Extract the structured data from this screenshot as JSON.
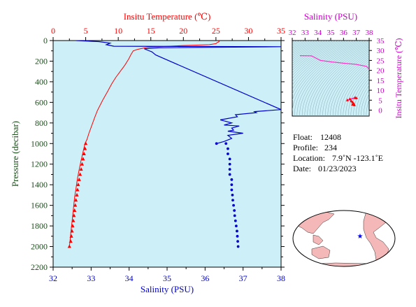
{
  "chart_data": [
    {
      "type": "line",
      "name": "profile-plot",
      "y_axis": {
        "label": "Pressure (decibar)",
        "range": [
          0,
          2200
        ],
        "inverted": true,
        "ticks": [
          "0",
          "200",
          "400",
          "600",
          "800",
          "1000",
          "1200",
          "1400",
          "1600",
          "1800",
          "2000",
          "2200"
        ]
      },
      "x_bottom": {
        "label": "Salinity (PSU)",
        "range": [
          32,
          38
        ],
        "ticks": [
          "32",
          "33",
          "34",
          "35",
          "36",
          "37",
          "38"
        ]
      },
      "x_top": {
        "label": "Insitu Temperature (℃)",
        "range": [
          0,
          35
        ],
        "ticks": [
          "0",
          "5",
          "10",
          "15",
          "20",
          "25",
          "30",
          "35"
        ]
      },
      "grid": false,
      "series": [
        {
          "quantity": "temperature",
          "axis": "top",
          "color": "#ff0000",
          "marker": "triangle",
          "line": [
            [
              25.4,
              0
            ],
            [
              25.5,
              10
            ],
            [
              25.2,
              20
            ],
            [
              25.0,
              30
            ],
            [
              24.0,
              40
            ],
            [
              20.0,
              48
            ],
            [
              14.5,
              65
            ],
            [
              13.0,
              85
            ],
            [
              12.3,
              100
            ],
            [
              12.0,
              130
            ],
            [
              11.6,
              180
            ],
            [
              11.0,
              240
            ],
            [
              10.3,
              300
            ],
            [
              9.6,
              360
            ],
            [
              9.0,
              420
            ],
            [
              8.4,
              490
            ],
            [
              7.6,
              580
            ],
            [
              6.8,
              680
            ],
            [
              6.3,
              760
            ],
            [
              5.9,
              830
            ],
            [
              5.5,
              900
            ],
            [
              5.2,
              960
            ],
            [
              4.9,
              1000
            ],
            [
              4.6,
              1080
            ],
            [
              4.3,
              1160
            ],
            [
              4.0,
              1250
            ],
            [
              3.7,
              1350
            ],
            [
              3.5,
              1440
            ],
            [
              3.3,
              1520
            ],
            [
              3.1,
              1640
            ],
            [
              2.9,
              1760
            ],
            [
              2.7,
              1880
            ],
            [
              2.5,
              2000
            ]
          ],
          "markers": [
            [
              5.0,
              1000
            ],
            [
              4.9,
              1050
            ],
            [
              4.75,
              1100
            ],
            [
              4.6,
              1150
            ],
            [
              4.45,
              1200
            ],
            [
              4.3,
              1250
            ],
            [
              4.15,
              1300
            ],
            [
              4.0,
              1350
            ],
            [
              3.85,
              1400
            ],
            [
              3.75,
              1450
            ],
            [
              3.65,
              1500
            ],
            [
              3.5,
              1550
            ],
            [
              3.4,
              1600
            ],
            [
              3.3,
              1650
            ],
            [
              3.2,
              1700
            ],
            [
              3.1,
              1750
            ],
            [
              3.0,
              1800
            ],
            [
              2.9,
              1850
            ],
            [
              2.8,
              1900
            ],
            [
              2.7,
              1950
            ],
            [
              2.5,
              2000
            ]
          ]
        },
        {
          "quantity": "salinity",
          "axis": "bottom",
          "color": "#0000cc",
          "marker": "dot",
          "line": [
            [
              32.6,
              0
            ],
            [
              33.2,
              10
            ],
            [
              33.5,
              25
            ],
            [
              33.4,
              40
            ],
            [
              33.6,
              55
            ],
            [
              38.0,
              60
            ],
            [
              34.8,
              70
            ],
            [
              34.4,
              80
            ],
            [
              34.5,
              95
            ],
            [
              34.6,
              110
            ],
            [
              34.7,
              140
            ],
            [
              38.0,
              670
            ],
            [
              37.3,
              690
            ],
            [
              37.35,
              700
            ],
            [
              36.8,
              720
            ],
            [
              36.85,
              740
            ],
            [
              36.4,
              770
            ],
            [
              36.7,
              800
            ],
            [
              36.5,
              820
            ],
            [
              36.9,
              830
            ],
            [
              36.7,
              850
            ],
            [
              36.75,
              870
            ],
            [
              36.6,
              880
            ],
            [
              37.0,
              900
            ],
            [
              36.6,
              920
            ],
            [
              36.7,
              950
            ],
            [
              36.5,
              980
            ],
            [
              36.3,
              1000
            ]
          ],
          "markers": [
            [
              36.3,
              1000
            ],
            [
              36.55,
              1000
            ],
            [
              36.6,
              1050
            ],
            [
              36.6,
              1100
            ],
            [
              36.65,
              1150
            ],
            [
              36.65,
              1200
            ],
            [
              36.65,
              1250
            ],
            [
              36.65,
              1300
            ],
            [
              36.7,
              1350
            ],
            [
              36.7,
              1400
            ],
            [
              36.7,
              1450
            ],
            [
              36.72,
              1500
            ],
            [
              36.73,
              1550
            ],
            [
              36.75,
              1600
            ],
            [
              36.77,
              1650
            ],
            [
              36.78,
              1700
            ],
            [
              36.8,
              1750
            ],
            [
              36.82,
              1800
            ],
            [
              36.84,
              1850
            ],
            [
              36.85,
              1900
            ],
            [
              36.86,
              1950
            ],
            [
              36.87,
              2000
            ]
          ]
        }
      ]
    },
    {
      "type": "line",
      "name": "ts-diagram",
      "x_axis": {
        "label": "Salinity (PSU)",
        "range": [
          32,
          38
        ],
        "ticks": [
          "32",
          "33",
          "34",
          "35",
          "36",
          "37",
          "38"
        ]
      },
      "y_axis": {
        "label": "Insitu Temperature (℃)",
        "range": [
          -3,
          35
        ],
        "ticks": [
          "0",
          "5",
          "10",
          "15",
          "20",
          "25",
          "30",
          "35"
        ]
      },
      "series": [
        {
          "quantity": "T-S profile",
          "color": "#ff33cc",
          "points": [
            [
              32.6,
              27.4
            ],
            [
              33.5,
              27.3
            ],
            [
              34.2,
              25.0
            ],
            [
              35.0,
              24.3
            ],
            [
              36.0,
              23.6
            ],
            [
              37.0,
              23.0
            ],
            [
              37.8,
              22.0
            ],
            [
              38.0,
              20.5
            ]
          ],
          "cluster": [
            [
              36.3,
              5.0
            ],
            [
              36.9,
              6.3
            ],
            [
              37.0,
              6.0
            ],
            [
              36.5,
              5.5
            ],
            [
              36.6,
              4.5
            ],
            [
              36.7,
              4.0
            ],
            [
              36.8,
              3.2
            ],
            [
              36.7,
              2.8
            ],
            [
              36.85,
              2.5
            ]
          ]
        }
      ]
    }
  ],
  "colors": {
    "plot_bg": "#cdeff7",
    "temperature": "#ff0000",
    "salinity": "#0000cc",
    "pressure_axis": "#1a4d1a",
    "ts_axis": "#cc00cc",
    "map_land": "#f4b8b8",
    "map_ocean": "#ffffff"
  },
  "info": {
    "float_label": "Float:",
    "float_value": "12408",
    "profile_label": "Profile:",
    "profile_value": "234",
    "location_label": "Location:",
    "location_value": "7.9˚N  -123.1˚E",
    "date_label": "Date:",
    "date_value": "01/23/2023"
  },
  "map": {
    "marker": "star",
    "marker_color": "#0000ff",
    "lat": 7.9,
    "lon": -123.1
  }
}
